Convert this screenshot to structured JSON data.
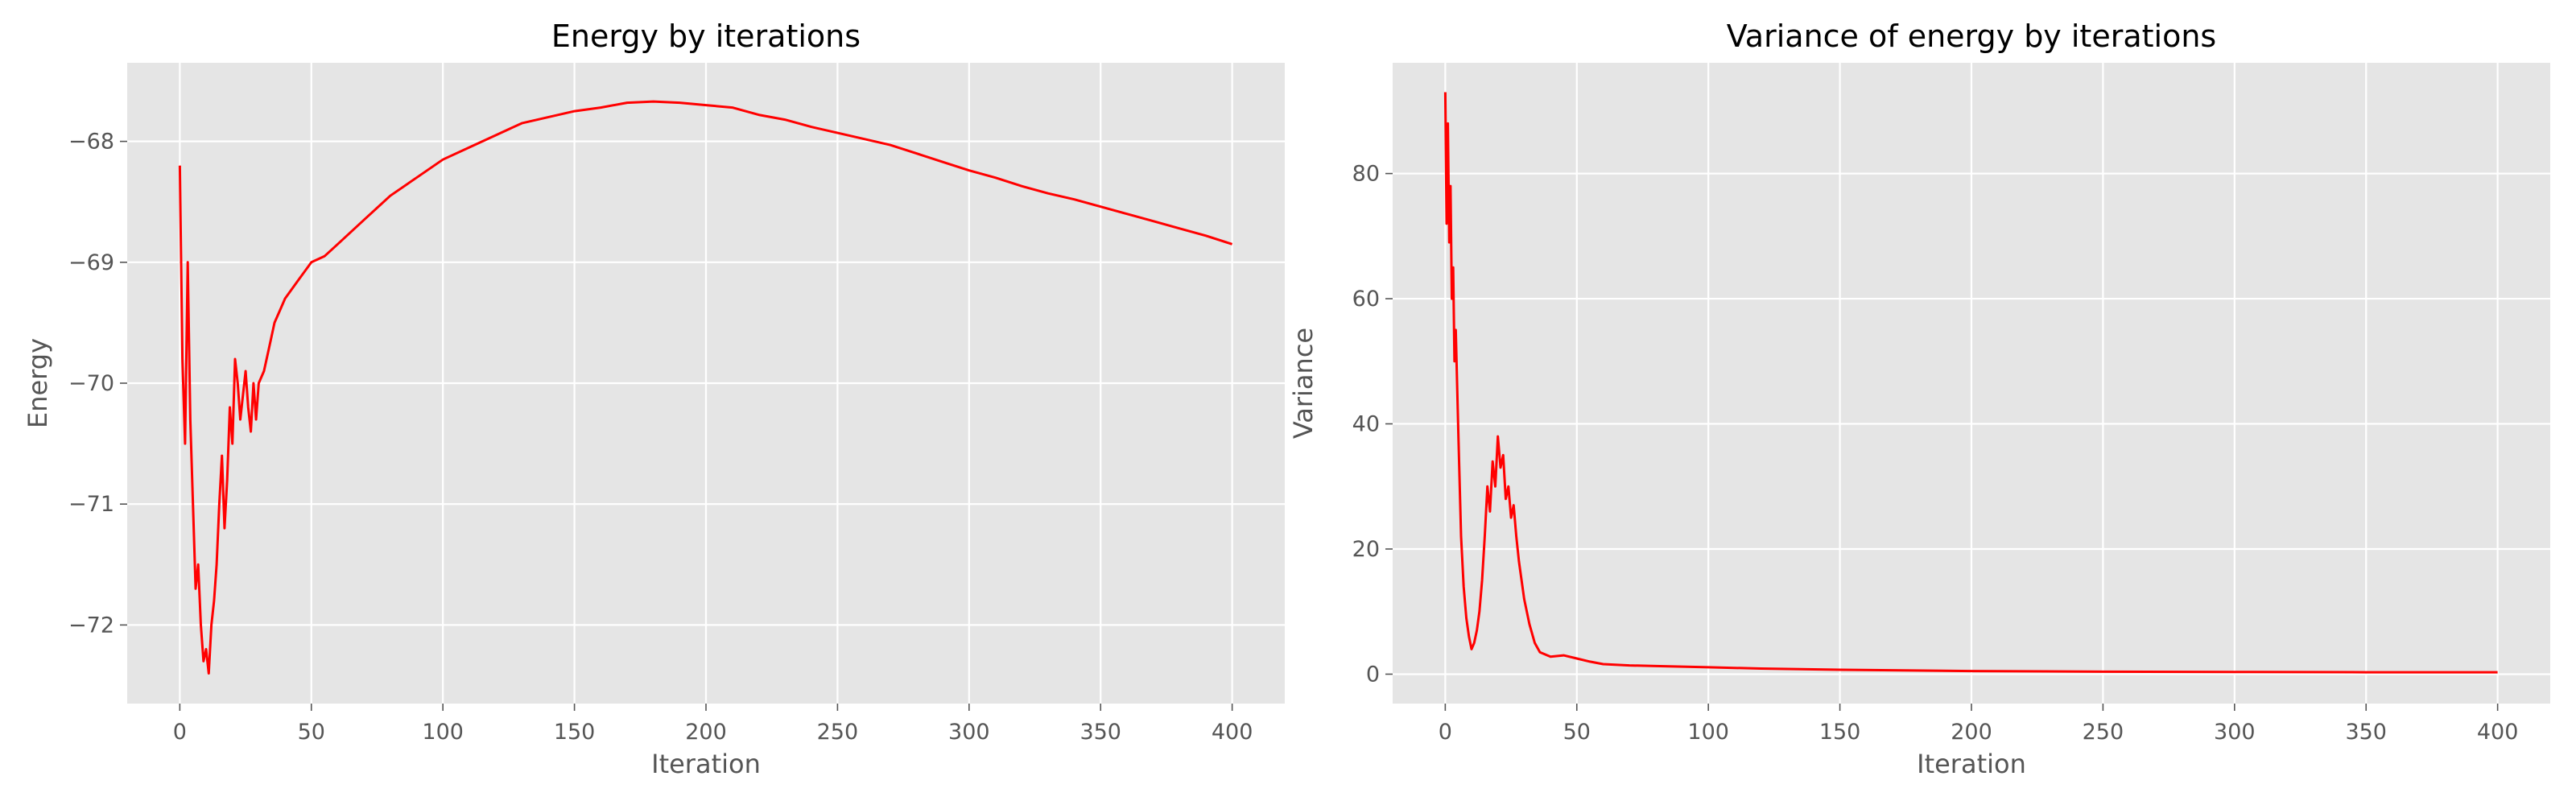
{
  "chart_data": [
    {
      "type": "line",
      "title": "Energy by iterations",
      "xlabel": "Iteration",
      "ylabel": "Energy",
      "xlim": [
        -20,
        420
      ],
      "ylim": [
        -72.65,
        -67.35
      ],
      "xticks": [
        0,
        50,
        100,
        150,
        200,
        250,
        300,
        350,
        400
      ],
      "xtick_labels": [
        "0",
        "50",
        "100",
        "150",
        "200",
        "250",
        "300",
        "350",
        "400"
      ],
      "yticks": [
        -72,
        -71,
        -70,
        -69,
        -68
      ],
      "ytick_labels": [
        "−72",
        "−71",
        "−70",
        "−69",
        "−68"
      ],
      "grid": true,
      "series": [
        {
          "color": "#ff0000",
          "x": [
            0,
            1,
            2,
            3,
            4,
            5,
            6,
            7,
            8,
            9,
            10,
            11,
            12,
            13,
            14,
            15,
            16,
            17,
            18,
            19,
            20,
            21,
            22,
            23,
            24,
            25,
            26,
            27,
            28,
            29,
            30,
            32,
            34,
            36,
            38,
            40,
            45,
            50,
            55,
            60,
            70,
            80,
            90,
            100,
            110,
            120,
            130,
            140,
            150,
            160,
            170,
            180,
            190,
            200,
            210,
            220,
            230,
            240,
            250,
            260,
            270,
            280,
            290,
            300,
            310,
            320,
            330,
            340,
            350,
            360,
            370,
            380,
            390,
            400
          ],
          "y": [
            -68.2,
            -69.8,
            -70.5,
            -69.0,
            -70.3,
            -71.0,
            -71.7,
            -71.5,
            -72.0,
            -72.3,
            -72.2,
            -72.4,
            -72.0,
            -71.8,
            -71.5,
            -71.0,
            -70.6,
            -71.2,
            -70.8,
            -70.2,
            -70.5,
            -69.8,
            -70.0,
            -70.3,
            -70.1,
            -69.9,
            -70.2,
            -70.4,
            -70.0,
            -70.3,
            -70.0,
            -69.9,
            -69.7,
            -69.5,
            -69.4,
            -69.3,
            -69.15,
            -69.0,
            -68.95,
            -68.85,
            -68.65,
            -68.45,
            -68.3,
            -68.15,
            -68.05,
            -67.95,
            -67.85,
            -67.8,
            -67.75,
            -67.72,
            -67.68,
            -67.67,
            -67.68,
            -67.7,
            -67.72,
            -67.78,
            -67.82,
            -67.88,
            -67.93,
            -67.98,
            -68.03,
            -68.1,
            -68.17,
            -68.24,
            -68.3,
            -68.37,
            -68.43,
            -68.48,
            -68.54,
            -68.6,
            -68.66,
            -68.72,
            -68.78,
            -68.85
          ]
        }
      ]
    },
    {
      "type": "line",
      "title": "Variance of energy by iterations",
      "xlabel": "Iteration",
      "ylabel": "Variance",
      "xlim": [
        -20,
        420
      ],
      "ylim": [
        -4.7,
        97.7
      ],
      "xticks": [
        0,
        50,
        100,
        150,
        200,
        250,
        300,
        350,
        400
      ],
      "xtick_labels": [
        "0",
        "50",
        "100",
        "150",
        "200",
        "250",
        "300",
        "350",
        "400"
      ],
      "yticks": [
        0,
        20,
        40,
        60,
        80
      ],
      "ytick_labels": [
        "0",
        "20",
        "40",
        "60",
        "80"
      ],
      "grid": true,
      "series": [
        {
          "color": "#ff0000",
          "x": [
            0,
            0.5,
            1,
            1.5,
            2,
            2.5,
            3,
            3.5,
            4,
            5,
            6,
            7,
            8,
            9,
            10,
            11,
            12,
            13,
            14,
            15,
            16,
            17,
            18,
            19,
            20,
            21,
            22,
            23,
            24,
            25,
            26,
            27,
            28,
            30,
            32,
            34,
            36,
            40,
            45,
            50,
            55,
            60,
            70,
            80,
            100,
            120,
            150,
            200,
            250,
            300,
            350,
            400
          ],
          "y": [
            93,
            72,
            88,
            69,
            78,
            60,
            65,
            50,
            55,
            38,
            22,
            14,
            9,
            6,
            4,
            5,
            7,
            10,
            15,
            22,
            30,
            26,
            34,
            30,
            38,
            33,
            35,
            28,
            30,
            25,
            27,
            22,
            18,
            12,
            8,
            5,
            3.5,
            2.8,
            3.0,
            2.5,
            2.0,
            1.6,
            1.4,
            1.3,
            1.1,
            0.9,
            0.7,
            0.5,
            0.4,
            0.35,
            0.3,
            0.3
          ]
        }
      ]
    }
  ]
}
